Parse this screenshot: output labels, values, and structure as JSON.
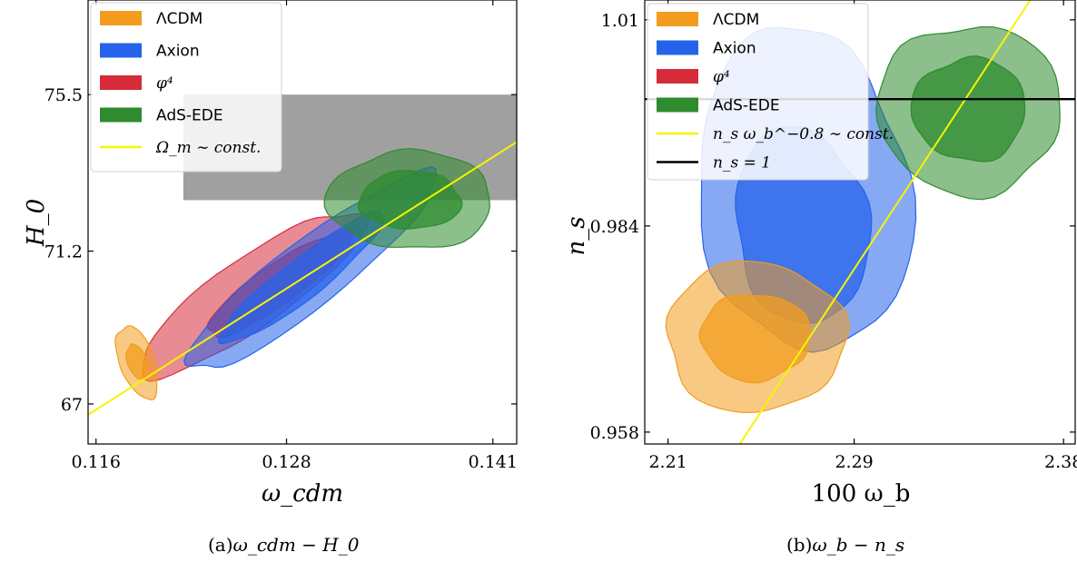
{
  "colors": {
    "lcdm": "#f39c1e",
    "axion": "#2563eb",
    "phi4": "#d62c3a",
    "ads": "#2e8b2e",
    "yellow_line": "#f5f500",
    "black_line": "#000000",
    "band": "#808080"
  },
  "chart_data": [
    {
      "type": "contour",
      "xlabel": "ω_cdm",
      "ylabel": "H_0",
      "xlim": [
        0.1155,
        0.1425
      ],
      "ylim": [
        65.9,
        78.1
      ],
      "xticks": [
        "0.116",
        "0.128",
        "0.141"
      ],
      "xtick_values": [
        0.116,
        0.128,
        0.141
      ],
      "yticks": [
        "67",
        "71.2",
        "75.5"
      ],
      "ytick_values": [
        67,
        71.2,
        75.5
      ],
      "caption": {
        "prefix": "(a)",
        "expr": "ω_cdm − H_0"
      },
      "band": {
        "y_range": [
          72.6,
          75.5
        ],
        "x_from": 0.1215
      },
      "legend": [
        {
          "label": "ΛCDM",
          "kind": "patch",
          "color_key": "lcdm",
          "math": false
        },
        {
          "label": "Axion",
          "kind": "patch",
          "color_key": "axion",
          "math": false
        },
        {
          "label": "φ⁴",
          "kind": "patch",
          "color_key": "phi4",
          "math": true
        },
        {
          "label": "AdS-EDE",
          "kind": "patch",
          "color_key": "ads",
          "math": false
        },
        {
          "label": "Ω_m ∼ const.",
          "kind": "line",
          "color_key": "yellow_line",
          "math": true
        }
      ],
      "lines": [
        {
          "name": "Ω_m ∼ const.",
          "color_key": "yellow_line",
          "points": [
            [
              0.1155,
              66.7
            ],
            [
              0.1425,
              74.2
            ]
          ]
        }
      ],
      "series": [
        {
          "name": "φ⁴",
          "color_key": "phi4",
          "regions": [
            {
              "level": "95%",
              "center": [
                0.1258,
                70.05
              ],
              "rx": 0.0085,
              "ry": 0.95,
              "angle_deg": -35
            },
            {
              "level": "68%",
              "center": [
                0.1275,
                70.3
              ],
              "rx": 0.0055,
              "ry": 0.55,
              "angle_deg": -35
            }
          ]
        },
        {
          "name": "Axion",
          "color_key": "axion",
          "regions": [
            {
              "level": "95%",
              "center": [
                0.1295,
                70.6
              ],
              "rx": 0.0098,
              "ry": 0.9,
              "angle_deg": -38
            },
            {
              "level": "68%",
              "center": [
                0.129,
                70.45
              ],
              "rx": 0.0065,
              "ry": 0.55,
              "angle_deg": -38
            }
          ]
        },
        {
          "name": "ΛCDM",
          "color_key": "lcdm",
          "regions": [
            {
              "level": "95%",
              "center": [
                0.1186,
                68.15
              ],
              "rx": 0.0011,
              "ry": 1.05,
              "angle_deg": -20
            },
            {
              "level": "68%",
              "center": [
                0.1186,
                68.15
              ],
              "rx": 0.0006,
              "ry": 0.5,
              "angle_deg": -20
            }
          ]
        },
        {
          "name": "AdS-EDE",
          "color_key": "ads",
          "regions": [
            {
              "level": "95%",
              "center": [
                0.1358,
                72.6
              ],
              "rx": 0.0052,
              "ry": 1.35,
              "angle_deg": 0
            },
            {
              "level": "68%",
              "center": [
                0.1358,
                72.6
              ],
              "rx": 0.0032,
              "ry": 0.8,
              "angle_deg": 0
            }
          ]
        }
      ]
    },
    {
      "type": "contour",
      "xlabel": "100 ω_b",
      "ylabel": "n_s",
      "xlim": [
        2.2,
        2.385
      ],
      "ylim": [
        0.9565,
        1.0125
      ],
      "xticks": [
        "2.21",
        "2.29",
        "2.38"
      ],
      "xtick_values": [
        2.21,
        2.29,
        2.38
      ],
      "yticks": [
        "0.958",
        "0.984",
        "1.01"
      ],
      "ytick_values": [
        0.958,
        0.984,
        1.01
      ],
      "caption": {
        "prefix": "(b)",
        "expr": "ω_b − n_s"
      },
      "legend": [
        {
          "label": "ΛCDM",
          "kind": "patch",
          "color_key": "lcdm",
          "math": false
        },
        {
          "label": "Axion",
          "kind": "patch",
          "color_key": "axion",
          "math": false
        },
        {
          "label": "φ⁴",
          "kind": "patch",
          "color_key": "phi4",
          "math": true
        },
        {
          "label": "AdS-EDE",
          "kind": "patch",
          "color_key": "ads",
          "math": false
        },
        {
          "label": "n_s ω_b^−0.8 ∼ const.",
          "kind": "line",
          "color_key": "yellow_line",
          "math": true
        },
        {
          "label": "n_s = 1",
          "kind": "line",
          "color_key": "black_line",
          "math": true
        }
      ],
      "lines": [
        {
          "name": "n_s ω_b^−0.8 ∼ const.",
          "color_key": "yellow_line",
          "points": [
            [
              2.2375,
              0.955
            ],
            [
              2.3657,
              1.0125
            ]
          ]
        },
        {
          "name": "n_s = 1",
          "color_key": "black_line",
          "points": [
            [
              2.2,
              1.0
            ],
            [
              2.385,
              1.0
            ]
          ]
        }
      ],
      "series": [
        {
          "name": "Axion",
          "color_key": "axion",
          "regions": [
            {
              "level": "95%",
              "center": [
                2.2685,
                0.9885
              ],
              "rx": 0.0455,
              "ry": 0.0205,
              "angle_deg": -8
            },
            {
              "level": "68%",
              "center": [
                2.2675,
                0.984
              ],
              "rx": 0.0285,
              "ry": 0.0125,
              "angle_deg": -8
            }
          ]
        },
        {
          "name": "ΛCDM",
          "color_key": "lcdm",
          "regions": [
            {
              "level": "95%",
              "center": [
                2.2475,
                0.97
              ],
              "rx": 0.0385,
              "ry": 0.0095,
              "angle_deg": 0
            },
            {
              "level": "68%",
              "center": [
                2.2475,
                0.97
              ],
              "rx": 0.0235,
              "ry": 0.0055,
              "angle_deg": 0
            }
          ]
        },
        {
          "name": "AdS-EDE",
          "color_key": "ads",
          "regions": [
            {
              "level": "95%",
              "center": [
                2.3395,
                0.9987
              ],
              "rx": 0.0395,
              "ry": 0.0107,
              "angle_deg": 0
            },
            {
              "level": "68%",
              "center": [
                2.3395,
                0.9987
              ],
              "rx": 0.0245,
              "ry": 0.0065,
              "angle_deg": 0
            }
          ]
        }
      ]
    }
  ]
}
